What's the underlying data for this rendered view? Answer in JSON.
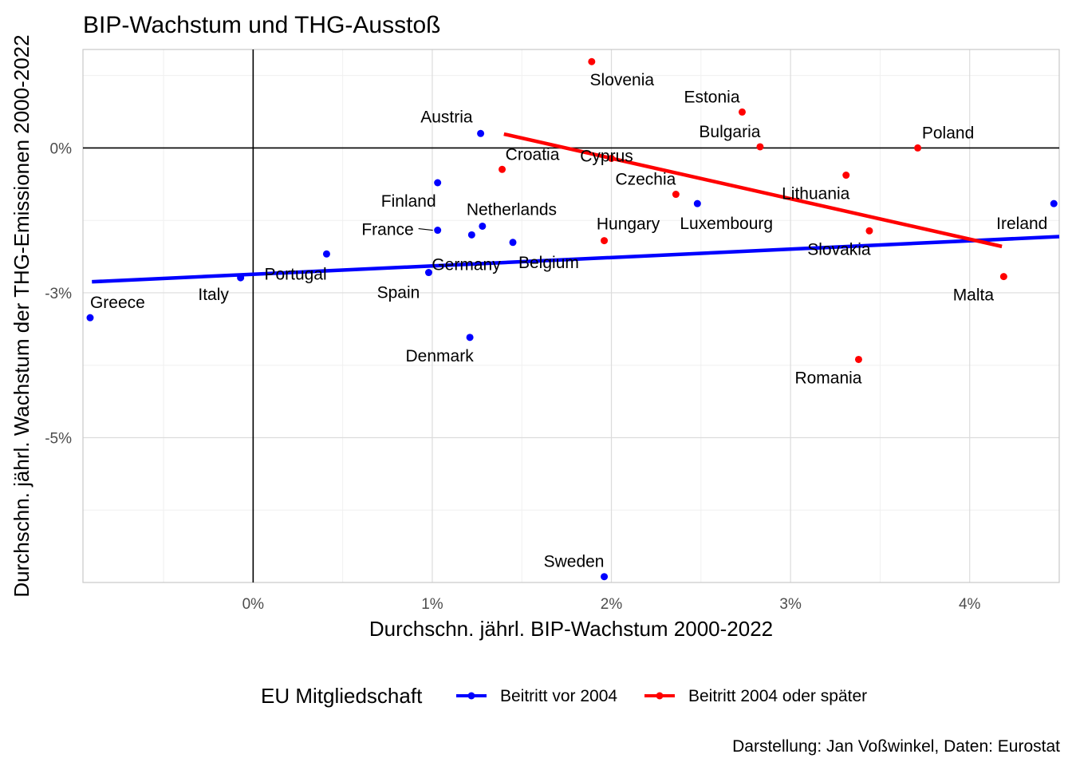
{
  "chart_data": {
    "type": "scatter",
    "title": "BIP-Wachstum und THG-Ausstoß",
    "xlabel": "Durchschn. jährl. BIP-Wachstum 2000-2022",
    "ylabel": "Durchschn. jährl. Wachstum der THG-Emissionen 2000-2022",
    "caption": "Darstellung: Jan Voßwinkel, Daten: Eurostat",
    "xlim": [
      -0.95,
      4.5
    ],
    "ylim": [
      -7.5,
      1.7
    ],
    "x_ticks": [
      {
        "value": 0,
        "label": "0%"
      },
      {
        "value": 1,
        "label": "1%"
      },
      {
        "value": 2,
        "label": "2%"
      },
      {
        "value": 3,
        "label": "3%"
      },
      {
        "value": 4,
        "label": "4%"
      }
    ],
    "y_ticks": [
      {
        "value": 0,
        "label": "0%"
      },
      {
        "value": -2.5,
        "label": "-3%"
      },
      {
        "value": -5,
        "label": "-5%"
      }
    ],
    "legend": {
      "title": "EU Mitgliedschaft",
      "position": "bottom",
      "entries": [
        {
          "name": "Beitritt vor 2004",
          "color": "#0000ff"
        },
        {
          "name": "Beitritt 2004 oder später",
          "color": "#ff0000"
        }
      ]
    },
    "series": [
      {
        "name": "Beitritt vor 2004",
        "color": "#0000ff",
        "trend": {
          "x": [
            -0.9,
            4.5
          ],
          "y": [
            -2.31,
            -1.53
          ]
        },
        "points": [
          {
            "label": "Austria",
            "x": 1.27,
            "y": 0.25
          },
          {
            "label": "Finland",
            "x": 1.03,
            "y": -0.6
          },
          {
            "label": "Netherlands",
            "x": 1.28,
            "y": -1.35
          },
          {
            "label": "France",
            "x": 1.03,
            "y": -1.42
          },
          {
            "label": "Germany",
            "x": 1.22,
            "y": -1.5
          },
          {
            "label": "Belgium",
            "x": 1.45,
            "y": -1.63
          },
          {
            "label": "Luxembourg",
            "x": 2.48,
            "y": -0.96
          },
          {
            "label": "Ireland",
            "x": 4.47,
            "y": -0.96
          },
          {
            "label": "Portugal",
            "x": 0.41,
            "y": -1.83
          },
          {
            "label": "Italy",
            "x": -0.07,
            "y": -2.24
          },
          {
            "label": "Spain",
            "x": 0.98,
            "y": -2.15
          },
          {
            "label": "Greece",
            "x": -0.91,
            "y": -2.93
          },
          {
            "label": "Denmark",
            "x": 1.21,
            "y": -3.27
          },
          {
            "label": "Sweden",
            "x": 1.96,
            "y": -7.4
          }
        ]
      },
      {
        "name": "Beitritt 2004 oder später",
        "color": "#ff0000",
        "trend": {
          "x": [
            1.4,
            4.18
          ],
          "y": [
            0.24,
            -1.7
          ]
        },
        "points": [
          {
            "label": "Slovenia",
            "x": 1.89,
            "y": 1.49
          },
          {
            "label": "Estonia",
            "x": 2.73,
            "y": 0.62
          },
          {
            "label": "Bulgaria",
            "x": 2.83,
            "y": 0.02
          },
          {
            "label": "Poland",
            "x": 3.71,
            "y": 0.0
          },
          {
            "label": "Cyprus",
            "x": 2.0,
            "y": -0.18
          },
          {
            "label": "Croatia",
            "x": 1.39,
            "y": -0.37
          },
          {
            "label": "Czechia",
            "x": 2.36,
            "y": -0.8
          },
          {
            "label": "Lithuania",
            "x": 3.31,
            "y": -0.47
          },
          {
            "label": "Hungary",
            "x": 1.96,
            "y": -1.6
          },
          {
            "label": "Slovakia",
            "x": 3.44,
            "y": -1.43
          },
          {
            "label": "Malta",
            "x": 4.19,
            "y": -2.22
          },
          {
            "label": "Romania",
            "x": 3.38,
            "y": -3.65
          }
        ]
      }
    ]
  }
}
